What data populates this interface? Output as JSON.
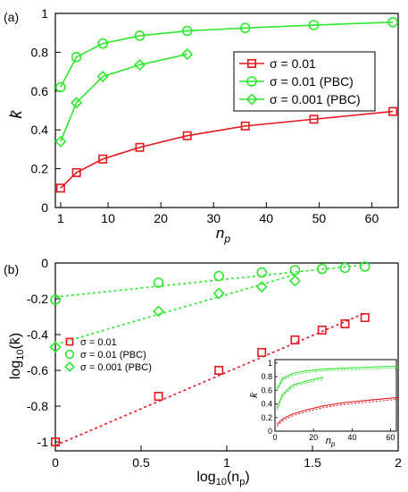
{
  "chart_data": [
    {
      "panel_label": "(a)",
      "type": "line",
      "xlabel_main": "n",
      "xlabel_sub": "p",
      "ylabel": "k̄",
      "xlim": [
        0,
        65
      ],
      "ylim": [
        0,
        1
      ],
      "xticks": [
        1,
        10,
        20,
        30,
        40,
        50,
        60
      ],
      "yticks": [
        0,
        0.2,
        0.4,
        0.6,
        0.8,
        1
      ],
      "ytick_labels": [
        "0",
        "0.2",
        "0.4",
        "0.6",
        "0.8",
        "1"
      ],
      "grid": false,
      "legend_position": "center-right",
      "series": [
        {
          "name": "σ = 0.01",
          "color": "#e8191e",
          "marker": "square",
          "x": [
            1,
            4,
            9,
            16,
            25,
            36,
            49,
            64
          ],
          "y": [
            0.1,
            0.18,
            0.25,
            0.31,
            0.37,
            0.42,
            0.455,
            0.495
          ]
        },
        {
          "name": "σ = 0.01 (PBC)",
          "color": "#2ee82e",
          "marker": "circle",
          "x": [
            1,
            4,
            9,
            16,
            25,
            36,
            49,
            64
          ],
          "y": [
            0.62,
            0.775,
            0.845,
            0.885,
            0.91,
            0.925,
            0.94,
            0.955
          ]
        },
        {
          "name": "σ = 0.001 (PBC)",
          "color": "#2ee82e",
          "marker": "diamond",
          "x": [
            1,
            4,
            9,
            16,
            25
          ],
          "y": [
            0.34,
            0.54,
            0.675,
            0.735,
            0.79
          ]
        }
      ]
    },
    {
      "panel_label": "(b)",
      "type": "scatter",
      "xlabel_main": "log",
      "xlabel_base": "10",
      "xlabel_arg": "(n",
      "xlabel_arg_sub": "p",
      "xlabel_close": ")",
      "ylabel_main": "log",
      "ylabel_base": "10",
      "ylabel_arg": "(k̄)",
      "xlim": [
        0,
        2
      ],
      "ylim": [
        -1.05,
        0
      ],
      "xticks": [
        0,
        0.5,
        1,
        1.5,
        2
      ],
      "xtick_labels": [
        "0",
        "0.5",
        "1",
        "1.5",
        "2"
      ],
      "yticks": [
        -1,
        -0.8,
        -0.6,
        -0.4,
        -0.2,
        0
      ],
      "ytick_labels": [
        "-1",
        "-0.8",
        "-0.6",
        "-0.4",
        "-0.2",
        "0"
      ],
      "grid": false,
      "legend_position": "center-left",
      "fit_lines": "dotted linear fits",
      "series": [
        {
          "name": "σ = 0.01",
          "color": "#e8191e",
          "marker": "square",
          "x": [
            0,
            0.602,
            0.954,
            1.204,
            1.398,
            1.556,
            1.69,
            1.806
          ],
          "y": [
            -1.0,
            -0.745,
            -0.6,
            -0.5,
            -0.43,
            -0.375,
            -0.34,
            -0.305
          ],
          "fit": [
            [
              0,
              -1.02
            ],
            [
              1.806,
              -0.28
            ]
          ]
        },
        {
          "name": "σ = 0.01 (PBC)",
          "color": "#2ee82e",
          "marker": "circle",
          "x": [
            0,
            0.602,
            0.954,
            1.204,
            1.398,
            1.556,
            1.69,
            1.806
          ],
          "y": [
            -0.205,
            -0.11,
            -0.073,
            -0.053,
            -0.04,
            -0.033,
            -0.027,
            -0.02
          ],
          "fit": [
            [
              0,
              -0.19
            ],
            [
              1.806,
              -0.01
            ]
          ]
        },
        {
          "name": "σ = 0.001 (PBC)",
          "color": "#2ee82e",
          "marker": "diamond",
          "x": [
            0,
            0.602,
            0.954,
            1.204,
            1.398
          ],
          "y": [
            -0.47,
            -0.27,
            -0.17,
            -0.133,
            -0.1
          ],
          "fit": [
            [
              0,
              -0.455
            ],
            [
              1.398,
              -0.065
            ]
          ]
        }
      ]
    },
    {
      "panel_label": "inset",
      "type": "line",
      "xlabel_main": "n",
      "xlabel_sub": "p",
      "ylabel": "k̄",
      "xlim": [
        0,
        63
      ],
      "ylim": [
        0,
        1.05
      ],
      "xticks": [
        0,
        20,
        40,
        60
      ],
      "yticks": [
        0,
        0.2,
        0.4,
        0.6,
        0.8,
        1
      ],
      "ytick_labels": [
        "0",
        "0.2",
        "0.4",
        "0.6",
        "0.8",
        "1"
      ],
      "grid": false,
      "series": [
        {
          "color": "#e8191e",
          "x": [
            1,
            4,
            9,
            16,
            25,
            36,
            49,
            64
          ],
          "y": [
            0.1,
            0.18,
            0.25,
            0.31,
            0.37,
            0.42,
            0.455,
            0.495
          ]
        },
        {
          "color": "#2ee82e",
          "x": [
            1,
            4,
            9,
            16,
            25,
            36,
            49,
            64
          ],
          "y": [
            0.62,
            0.775,
            0.845,
            0.885,
            0.91,
            0.925,
            0.94,
            0.955
          ]
        },
        {
          "color": "#2ee82e",
          "x": [
            1,
            4,
            9,
            16,
            25
          ],
          "y": [
            0.34,
            0.54,
            0.675,
            0.735,
            0.79
          ]
        }
      ]
    }
  ]
}
